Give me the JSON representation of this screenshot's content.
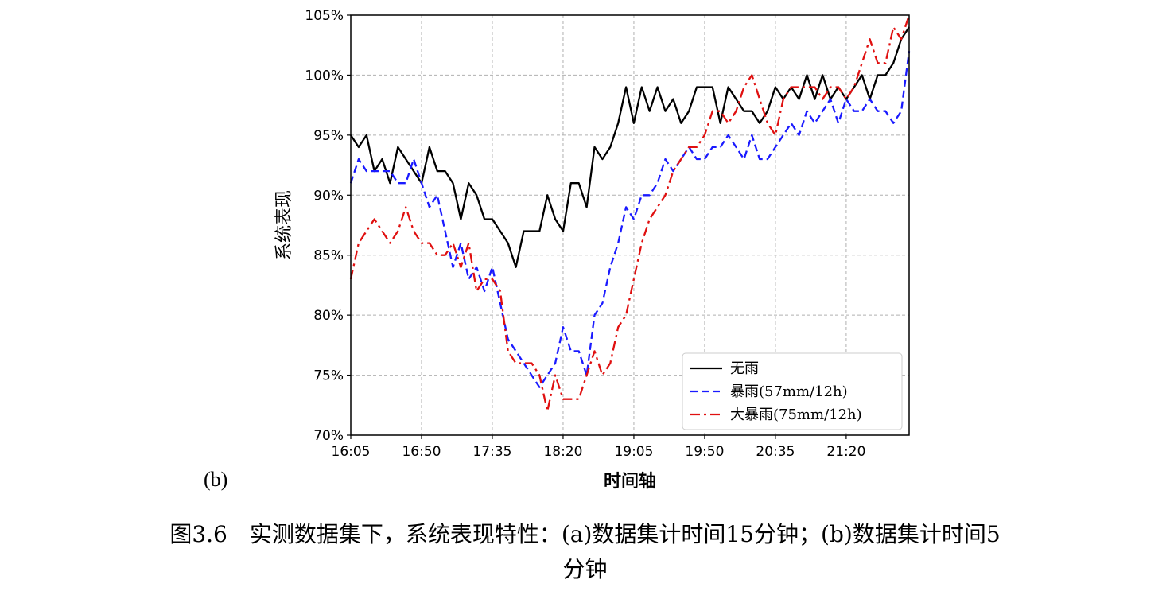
{
  "chart_data": {
    "type": "line",
    "xlabel": "时间轴",
    "ylabel": "系统表现",
    "ylim": [
      70,
      105
    ],
    "yticks": [
      70,
      75,
      80,
      85,
      90,
      95,
      100,
      105
    ],
    "ytick_labels": [
      "70%",
      "75%",
      "80%",
      "85%",
      "90%",
      "95%",
      "100%",
      "105%"
    ],
    "xtick_labels": [
      "16:05",
      "16:50",
      "17:35",
      "18:20",
      "19:05",
      "19:50",
      "20:35",
      "21:20"
    ],
    "xtick_index": [
      0,
      9,
      18,
      27,
      36,
      45,
      54,
      63
    ],
    "grid": true,
    "legend_position": "lower-right",
    "series": [
      {
        "name": "无雨",
        "color": "#000000",
        "style": "solid",
        "values": [
          95,
          94,
          95,
          92,
          93,
          91,
          94,
          93,
          92,
          91,
          94,
          92,
          92,
          91,
          88,
          91,
          90,
          88,
          88,
          87,
          86,
          84,
          87,
          87,
          87,
          90,
          88,
          87,
          91,
          91,
          89,
          94,
          93,
          94,
          96,
          99,
          96,
          99,
          97,
          99,
          97,
          98,
          96,
          97,
          99,
          99,
          99,
          96,
          99,
          98,
          97,
          97,
          96,
          97,
          99,
          98,
          99,
          98,
          100,
          98,
          100,
          98,
          99,
          98,
          99,
          100,
          98,
          100,
          100,
          101,
          103,
          104
        ]
      },
      {
        "name": "暴雨(57mm/12h)",
        "color": "#1a1aff",
        "style": "dashed",
        "values": [
          91,
          93,
          92,
          92,
          92,
          92,
          91,
          91,
          93,
          91,
          89,
          90,
          87,
          84,
          86,
          83,
          84,
          82,
          84,
          81,
          78,
          77,
          76,
          75,
          74,
          75,
          76,
          79,
          77,
          77,
          75,
          80,
          81,
          84,
          86,
          89,
          88,
          90,
          90,
          91,
          93,
          92,
          93,
          94,
          93,
          93,
          94,
          94,
          95,
          94,
          93,
          95,
          93,
          93,
          94,
          95,
          96,
          95,
          97,
          96,
          97,
          98,
          96,
          98,
          97,
          97,
          98,
          97,
          97,
          96,
          97,
          102
        ]
      },
      {
        "name": "大暴雨(75mm/12h)",
        "color": "#e01010",
        "style": "dashdot",
        "values": [
          83,
          86,
          87,
          88,
          87,
          86,
          87,
          89,
          87,
          86,
          86,
          85,
          85,
          86,
          84,
          86,
          82,
          83,
          83,
          82,
          77,
          76,
          76,
          76,
          75,
          72,
          75,
          73,
          73,
          73,
          75,
          77,
          75,
          76,
          79,
          80,
          83,
          86,
          88,
          89,
          90,
          92,
          93,
          94,
          94,
          95,
          97,
          97,
          96,
          97,
          99,
          100,
          98,
          96,
          95,
          98,
          99,
          99,
          99,
          99,
          98,
          99,
          99,
          98,
          99,
          101,
          103,
          101,
          101,
          104,
          103,
          105
        ]
      }
    ]
  },
  "subfigure_label": "(b)",
  "caption": {
    "line1": "图3.6　实测数据集下，系统表现特性：(a)数据集计时间15分钟；(b)数据集计时间5",
    "line2": "分钟"
  }
}
